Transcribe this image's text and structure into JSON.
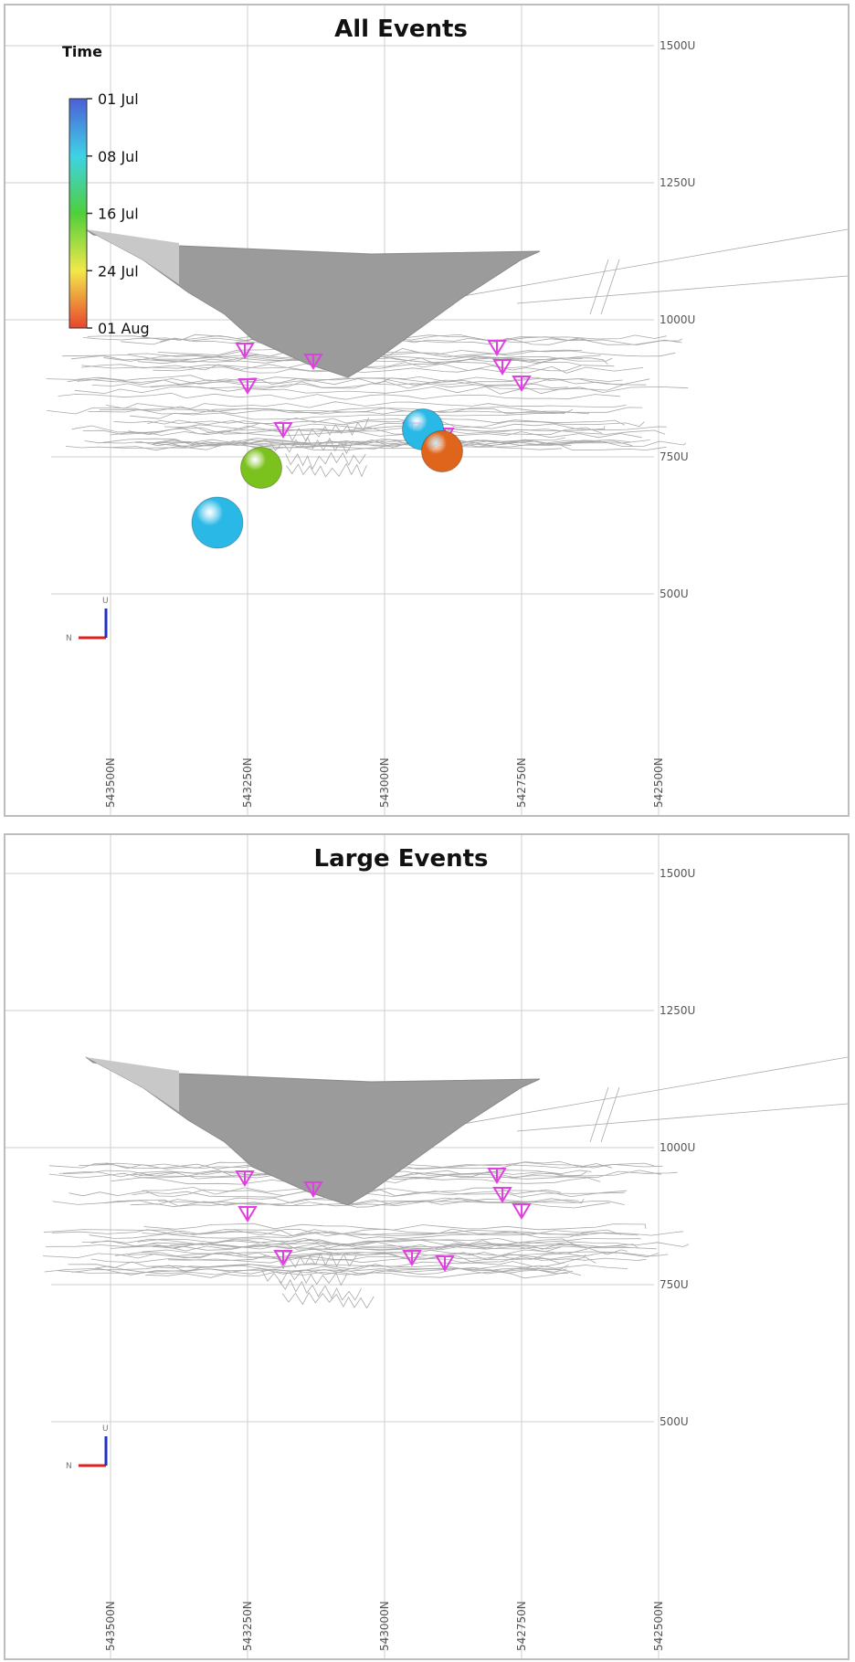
{
  "chart_data": [
    {
      "type": "scatter",
      "title": "All Events",
      "xlabel": "",
      "ylabel": "",
      "y_ticks": [
        "1500U",
        "1250U",
        "1000U",
        "750U",
        "500U"
      ],
      "y_values": [
        1500,
        1250,
        1000,
        750,
        500
      ],
      "x_ticks": [
        "543500N",
        "543250N",
        "543000N",
        "542750N",
        "542500N"
      ],
      "x_values": [
        543500,
        543250,
        543000,
        542750,
        542500
      ],
      "xlim": [
        543500,
        542500
      ],
      "ylim": [
        350,
        1550
      ],
      "grid": true,
      "color_legend": {
        "title": "Time",
        "placement": "top-left",
        "ticks": [
          "01 Jul",
          "08 Jul",
          "16 Jul",
          "24 Jul",
          "01 Aug"
        ],
        "colors": [
          "#4b5fd8",
          "#3ed3e6",
          "#4fcf3a",
          "#f2e84a",
          "#e8452c"
        ]
      },
      "events": [
        {
          "northing": 543305,
          "elevation": 630,
          "date": "08 Jul",
          "color": "#2ab8e6",
          "size": 4
        },
        {
          "northing": 543225,
          "elevation": 730,
          "date": "16 Jul",
          "color": "#7cc21e",
          "size": 3
        },
        {
          "northing": 542930,
          "elevation": 800,
          "date": "08 Jul",
          "color": "#28b9e6",
          "size": 3
        },
        {
          "northing": 542895,
          "elevation": 760,
          "date": "01 Aug",
          "color": "#e0651c",
          "size": 3
        }
      ],
      "sensors": [
        {
          "northing": 543255,
          "elevation": 945
        },
        {
          "northing": 543130,
          "elevation": 925
        },
        {
          "northing": 543250,
          "elevation": 880
        },
        {
          "northing": 543185,
          "elevation": 800
        },
        {
          "northing": 542950,
          "elevation": 800
        },
        {
          "northing": 542890,
          "elevation": 790
        },
        {
          "northing": 542795,
          "elevation": 950
        },
        {
          "northing": 542785,
          "elevation": 915
        },
        {
          "northing": 542750,
          "elevation": 885
        }
      ],
      "axis_indicator": {
        "up_label": "U",
        "north_label": "N"
      }
    },
    {
      "type": "scatter",
      "title": "Large Events",
      "xlabel": "",
      "ylabel": "",
      "y_ticks": [
        "1500U",
        "1250U",
        "1000U",
        "750U",
        "500U"
      ],
      "y_values": [
        1500,
        1250,
        1000,
        750,
        500
      ],
      "x_ticks": [
        "543500N",
        "543250N",
        "543000N",
        "542750N",
        "542500N"
      ],
      "x_values": [
        543500,
        543250,
        543000,
        542750,
        542500
      ],
      "xlim": [
        543500,
        542500
      ],
      "ylim": [
        350,
        1550
      ],
      "grid": true,
      "events": [],
      "sensors": [
        {
          "northing": 543255,
          "elevation": 945
        },
        {
          "northing": 543130,
          "elevation": 925
        },
        {
          "northing": 543250,
          "elevation": 880
        },
        {
          "northing": 543185,
          "elevation": 800
        },
        {
          "northing": 542950,
          "elevation": 800
        },
        {
          "northing": 542890,
          "elevation": 790
        },
        {
          "northing": 542795,
          "elevation": 950
        },
        {
          "northing": 542785,
          "elevation": 915
        },
        {
          "northing": 542750,
          "elevation": 885
        }
      ],
      "axis_indicator": {
        "up_label": "U",
        "north_label": "N"
      }
    }
  ]
}
